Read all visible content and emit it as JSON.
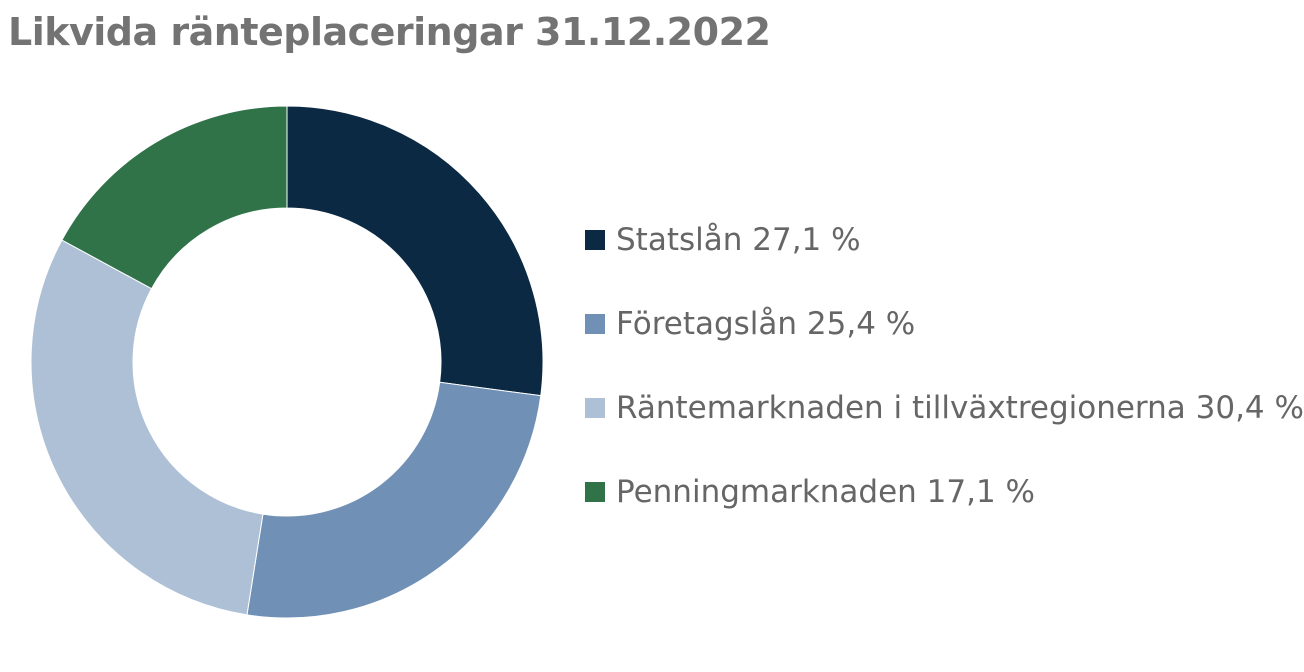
{
  "chart_data": {
    "type": "pie",
    "title": "Likvida ränteplaceringar 31.12.2022",
    "donut": true,
    "legend_position": "right",
    "slices": [
      {
        "label": "Statslån 27,1 %",
        "value": 27.1,
        "color": "#0b2942"
      },
      {
        "label": "Företagslån 25,4 %",
        "value": 25.4,
        "color": "#7090b5"
      },
      {
        "label": "Räntemarknaden i tillväxtregionerna 30,4 %",
        "value": 30.4,
        "color": "#adc0d5"
      },
      {
        "label": "Penningmarknaden 17,1 %",
        "value": 17.1,
        "color": "#307349"
      }
    ]
  }
}
